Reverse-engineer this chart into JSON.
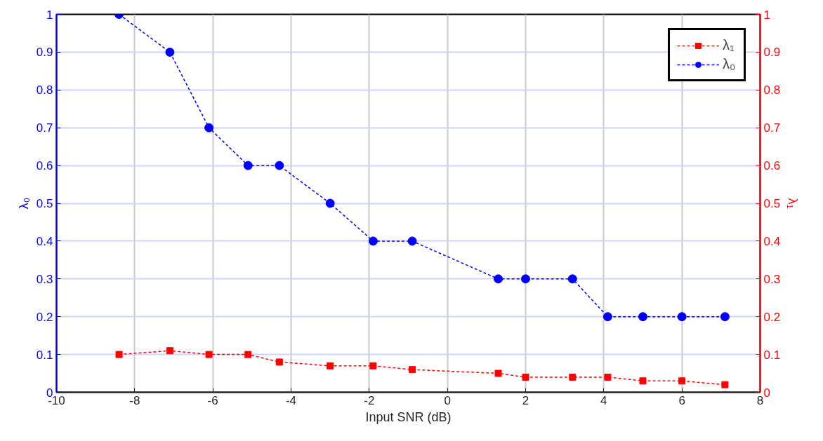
{
  "chart_data": {
    "type": "line",
    "xlabel": "Input SNR (dB)",
    "ylabel": "λ₀",
    "y2label": "λ₁",
    "x": [
      -8.4,
      -7.1,
      -6.1,
      -5.1,
      -4.3,
      -3.0,
      -1.9,
      -0.9,
      1.3,
      2.0,
      3.2,
      4.1,
      5.0,
      6.0,
      7.1
    ],
    "series": [
      {
        "name": "λ₁",
        "color": "#ff0000",
        "axis": "y2",
        "marker": "square",
        "values": [
          0.1,
          0.11,
          0.1,
          0.1,
          0.08,
          0.07,
          0.07,
          0.06,
          0.05,
          0.04,
          0.04,
          0.04,
          0.03,
          0.03,
          0.02
        ]
      },
      {
        "name": "λ₀",
        "color": "#0000ff",
        "marker": "circle",
        "values": [
          1,
          0.9,
          0.7,
          0.6,
          0.6,
          0.5,
          0.4,
          0.4,
          0.3,
          0.3,
          0.3,
          0.2,
          0.2,
          0.2,
          0.2
        ]
      }
    ],
    "xlim": [
      -10,
      8
    ],
    "xticks": [
      -10,
      -8,
      -6,
      -4,
      -2,
      0,
      2,
      4,
      6,
      8
    ],
    "ylim": [
      0,
      1
    ],
    "yticks": [
      0,
      0.1,
      0.2,
      0.3,
      0.4,
      0.5,
      0.6,
      0.7,
      0.8,
      0.9,
      1
    ],
    "y2lim": [
      0,
      1
    ],
    "y2ticks": [
      0,
      0.1,
      0.2,
      0.3,
      0.4,
      0.5,
      0.6,
      0.7,
      0.8,
      0.9,
      1
    ],
    "grid": true,
    "legend": "top right",
    "line_style": "dashed"
  }
}
